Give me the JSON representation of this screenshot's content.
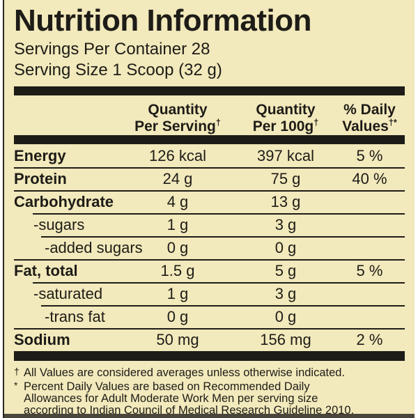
{
  "label": {
    "title": "Nutrition Information",
    "servings_per_container": "Servings Per Container 28",
    "serving_size": "Serving Size 1 Scoop (32 g)"
  },
  "table": {
    "columns": [
      {
        "line1": "Quantity",
        "line2": "Per Serving",
        "sup": "†"
      },
      {
        "line1": "Quantity",
        "line2": "Per 100g",
        "sup": "†"
      },
      {
        "line1": "% Daily",
        "line2": "Values",
        "sup": "†*"
      }
    ],
    "rows": [
      {
        "name": "Energy",
        "per_serving": "126 kcal",
        "per_100g": "397 kcal",
        "daily_value": "5 %",
        "style": "bold",
        "sep_above": "none"
      },
      {
        "name": "Protein",
        "per_serving": "24 g",
        "per_100g": "75 g",
        "daily_value": "40 %",
        "style": "bold",
        "sep_above": "full"
      },
      {
        "name": "Carbohydrate",
        "per_serving": "4 g",
        "per_100g": "13 g",
        "daily_value": "",
        "style": "bold",
        "sep_above": "full"
      },
      {
        "name": "-sugars",
        "per_serving": "1 g",
        "per_100g": "3 g",
        "daily_value": "",
        "style": "indent1",
        "sep_above": "ind1"
      },
      {
        "name": "-added sugars",
        "per_serving": "0 g",
        "per_100g": "0 g",
        "daily_value": "",
        "style": "indent2",
        "sep_above": "ind2"
      },
      {
        "name": "Fat, total",
        "per_serving": "1.5 g",
        "per_100g": "5 g",
        "daily_value": "5 %",
        "style": "bold",
        "sep_above": "full"
      },
      {
        "name": "-saturated",
        "per_serving": "1 g",
        "per_100g": "3 g",
        "daily_value": "",
        "style": "indent1",
        "sep_above": "ind1"
      },
      {
        "name": "-trans fat",
        "per_serving": "0 g",
        "per_100g": "0 g",
        "daily_value": "",
        "style": "indent2",
        "sep_above": "ind2"
      },
      {
        "name": "Sodium",
        "per_serving": "50 mg",
        "per_100g": "156 mg",
        "daily_value": "2 %",
        "style": "bold",
        "sep_above": "full"
      }
    ]
  },
  "footnotes": [
    {
      "marker": "†",
      "lines": [
        "All Values are considered averages unless otherwise indicated."
      ]
    },
    {
      "marker": "*",
      "lines": [
        "Percent Daily Values are based on Recommended Daily",
        "Allowances for Adult Moderate Work Men per serving size",
        "according to Indian Council of Medical Research Guideline 2010."
      ]
    }
  ],
  "colors": {
    "background": "#f2e9bc",
    "ink": "#1e1c17",
    "bottom_bar": "#4a463c"
  }
}
